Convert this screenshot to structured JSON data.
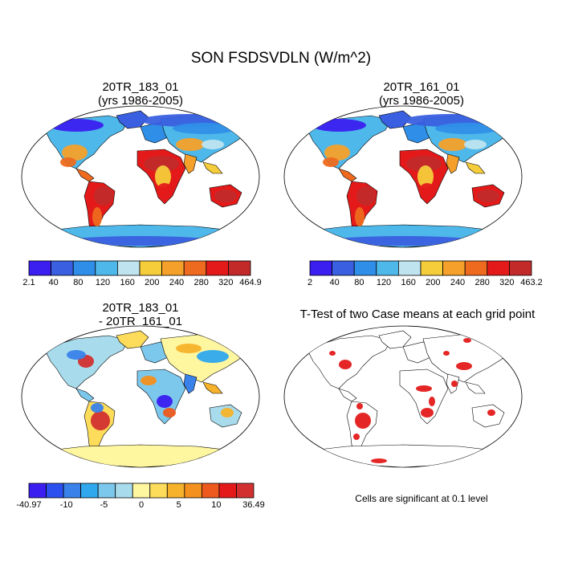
{
  "figure": {
    "title": "SON FSDSVDLN (W/m^2)",
    "panels": [
      {
        "id": "case1",
        "title_line1": "20TR_183_01",
        "title_line2": "(yrs 1986-2005)",
        "colorbar": {
          "labels": [
            "2.1",
            "40",
            "80",
            "120",
            "160",
            "200",
            "240",
            "280",
            "320",
            "464.9"
          ],
          "colors": [
            "#3a1ff0",
            "#3a5fe0",
            "#2f8fe8",
            "#4fb8ea",
            "#bfe4f0",
            "#f5cc3a",
            "#f5a02a",
            "#ee6a1e",
            "#e41a1a",
            "#c22a2a"
          ]
        }
      },
      {
        "id": "case2",
        "title_line1": "20TR_161_01",
        "title_line2": "(yrs 1986-2005)",
        "colorbar": {
          "labels": [
            "2",
            "40",
            "80",
            "120",
            "160",
            "200",
            "240",
            "280",
            "320",
            "463.2"
          ],
          "colors": [
            "#3a1ff0",
            "#3a5fe0",
            "#2f8fe8",
            "#4fb8ea",
            "#bfe4f0",
            "#f5cc3a",
            "#f5a02a",
            "#ee6a1e",
            "#e41a1a",
            "#c22a2a"
          ]
        }
      },
      {
        "id": "diff",
        "title_line1": "20TR_183_01",
        "title_line2": "- 20TR_161_01",
        "colorbar": {
          "labels": [
            "-40.97",
            "-10",
            "-5",
            "0",
            "5",
            "10",
            "36.49"
          ],
          "colors": [
            "#3a1ff0",
            "#2c50f0",
            "#3a82ea",
            "#2fa8ee",
            "#7cc8ec",
            "#a8dcec",
            "#fff6a0",
            "#fcdc5a",
            "#f6b22a",
            "#f4901e",
            "#ee5a1e",
            "#e41a1a",
            "#d23030"
          ]
        }
      },
      {
        "id": "ttest",
        "title_line1": "T-Test of two Case means at each grid point",
        "note": "Cells are significant at 0.1 level"
      }
    ]
  }
}
